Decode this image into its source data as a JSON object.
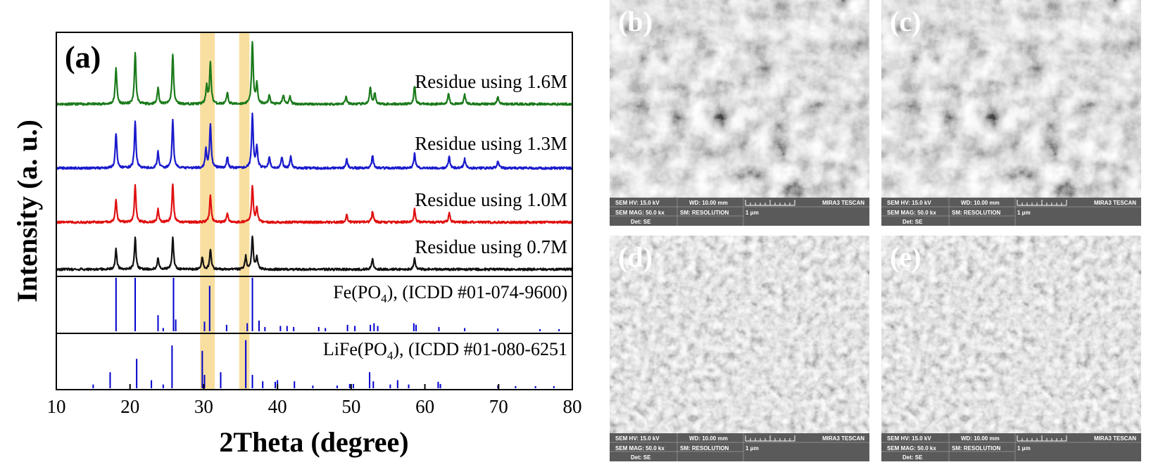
{
  "chart_data": {
    "type": "line",
    "panel_label": "(a)",
    "xlabel": "2Theta (degree)",
    "ylabel": "Intensity (a. u.)",
    "xlim": [
      10,
      80
    ],
    "xticks": [
      10,
      20,
      30,
      40,
      50,
      60,
      70,
      80
    ],
    "highlight_bands": [
      [
        29.5,
        31.5
      ],
      [
        34.8,
        36.2
      ]
    ],
    "colors": {
      "highlight": "#f8dfa0",
      "reference_sticks": "#0000cc"
    },
    "series": [
      {
        "name": "Residue using 1.6M",
        "color": "#1a7a1a",
        "peaks": [
          [
            18.1,
            1.0
          ],
          [
            20.7,
            1.4
          ],
          [
            23.8,
            0.45
          ],
          [
            25.8,
            1.35
          ],
          [
            30.4,
            0.5
          ],
          [
            30.9,
            1.1
          ],
          [
            33.2,
            0.3
          ],
          [
            36.6,
            1.7
          ],
          [
            37.2,
            0.55
          ],
          [
            38.9,
            0.25
          ],
          [
            40.8,
            0.25
          ],
          [
            41.7,
            0.2
          ],
          [
            49.3,
            0.2
          ],
          [
            52.6,
            0.45
          ],
          [
            53.2,
            0.3
          ],
          [
            58.6,
            0.5
          ],
          [
            63.2,
            0.3
          ],
          [
            65.4,
            0.25
          ],
          [
            69.9,
            0.2
          ]
        ]
      },
      {
        "name": "Residue using 1.3M",
        "color": "#1a1acc",
        "peaks": [
          [
            18.1,
            0.95
          ],
          [
            20.7,
            1.25
          ],
          [
            23.8,
            0.45
          ],
          [
            25.8,
            1.3
          ],
          [
            30.3,
            0.5
          ],
          [
            30.9,
            1.2
          ],
          [
            33.2,
            0.3
          ],
          [
            36.6,
            1.45
          ],
          [
            37.2,
            0.6
          ],
          [
            38.9,
            0.3
          ],
          [
            40.6,
            0.3
          ],
          [
            41.8,
            0.3
          ],
          [
            49.4,
            0.25
          ],
          [
            52.9,
            0.35
          ],
          [
            58.6,
            0.4
          ],
          [
            63.3,
            0.3
          ],
          [
            65.4,
            0.25
          ],
          [
            69.9,
            0.2
          ]
        ]
      },
      {
        "name": "Residue using 1.0M",
        "color": "#e01010",
        "peaks": [
          [
            18.1,
            0.6
          ],
          [
            20.7,
            1.0
          ],
          [
            23.8,
            0.35
          ],
          [
            25.8,
            1.05
          ],
          [
            30.9,
            0.75
          ],
          [
            33.2,
            0.25
          ],
          [
            36.6,
            1.0
          ],
          [
            37.2,
            0.4
          ],
          [
            49.4,
            0.2
          ],
          [
            52.9,
            0.3
          ],
          [
            58.6,
            0.35
          ],
          [
            63.3,
            0.25
          ]
        ]
      },
      {
        "name": "Residue using 0.7M",
        "color": "#111111",
        "peaks": [
          [
            18.1,
            0.55
          ],
          [
            20.7,
            0.85
          ],
          [
            23.8,
            0.3
          ],
          [
            25.8,
            0.85
          ],
          [
            29.8,
            0.35
          ],
          [
            30.9,
            0.55
          ],
          [
            35.7,
            0.35
          ],
          [
            36.6,
            0.9
          ],
          [
            37.2,
            0.35
          ],
          [
            52.9,
            0.3
          ],
          [
            58.6,
            0.3
          ]
        ]
      }
    ],
    "references": [
      {
        "name_main": "Fe(PO",
        "name_sub": "4",
        "name_rest": "), (ICDD #01-074-9600)",
        "sticks": [
          [
            18.1,
            1.0
          ],
          [
            20.7,
            1.0
          ],
          [
            23.8,
            0.3
          ],
          [
            24.5,
            0.06
          ],
          [
            25.9,
            1.0
          ],
          [
            26.2,
            0.22
          ],
          [
            30.1,
            0.18
          ],
          [
            30.8,
            0.85
          ],
          [
            33.1,
            0.12
          ],
          [
            35.9,
            0.15
          ],
          [
            36.6,
            1.0
          ],
          [
            37.5,
            0.2
          ],
          [
            38.3,
            0.08
          ],
          [
            40.4,
            0.1
          ],
          [
            41.3,
            0.1
          ],
          [
            42.2,
            0.08
          ],
          [
            45.6,
            0.08
          ],
          [
            46.5,
            0.06
          ],
          [
            49.5,
            0.12
          ],
          [
            50.5,
            0.1
          ],
          [
            52.6,
            0.12
          ],
          [
            53.1,
            0.15
          ],
          [
            53.6,
            0.1
          ],
          [
            58.5,
            0.15
          ],
          [
            58.8,
            0.12
          ],
          [
            61.9,
            0.08
          ],
          [
            65.4,
            0.06
          ],
          [
            69.9,
            0.05
          ],
          [
            75.6,
            0.04
          ],
          [
            78.2,
            0.04
          ]
        ]
      },
      {
        "name_main": "LiFe(PO",
        "name_sub": "4",
        "name_rest": "), (ICDD #01-080-6251",
        "sticks": [
          [
            15.0,
            0.07
          ],
          [
            17.3,
            0.3
          ],
          [
            20.9,
            0.55
          ],
          [
            22.9,
            0.15
          ],
          [
            24.5,
            0.07
          ],
          [
            25.7,
            0.8
          ],
          [
            29.8,
            0.7
          ],
          [
            30.1,
            0.25
          ],
          [
            32.3,
            0.3
          ],
          [
            35.7,
            0.9
          ],
          [
            36.6,
            0.25
          ],
          [
            38.0,
            0.13
          ],
          [
            39.7,
            0.12
          ],
          [
            40.0,
            0.15
          ],
          [
            42.3,
            0.13
          ],
          [
            44.8,
            0.05
          ],
          [
            48.1,
            0.05
          ],
          [
            49.8,
            0.08
          ],
          [
            50.3,
            0.08
          ],
          [
            52.5,
            0.3
          ],
          [
            53.0,
            0.13
          ],
          [
            55.3,
            0.07
          ],
          [
            56.3,
            0.15
          ],
          [
            57.8,
            0.07
          ],
          [
            61.8,
            0.12
          ],
          [
            62.1,
            0.08
          ],
          [
            69.9,
            0.05
          ],
          [
            72.3,
            0.04
          ],
          [
            75.0,
            0.04
          ],
          [
            77.5,
            0.04
          ]
        ]
      }
    ]
  },
  "sem_panels": [
    {
      "label": "(b)",
      "hv": "SEM HV: 15.0 kV",
      "wd": "WD: 10.00 mm",
      "brand": "MIRA3 TESCAN",
      "mag": "SEM MAG: 50.0 kx",
      "mode": "SM: RESOLUTION",
      "scale": "1 μm",
      "det": "Det: SE"
    },
    {
      "label": "(c)",
      "hv": "SEM HV: 15.0 kV",
      "wd": "WD: 10.00 mm",
      "brand": "MIRA3 TESCAN",
      "mag": "SEM MAG: 50.0 kx",
      "mode": "SM: RESOLUTION",
      "scale": "1 μm",
      "det": "Det: SE"
    },
    {
      "label": "(d)",
      "hv": "SEM HV: 15.0 kV",
      "wd": "WD: 10.00 mm",
      "brand": "MIRA3 TESCAN",
      "mag": "SEM MAG: 50.0 kx",
      "mode": "SM: RESOLUTION",
      "scale": "1 μm",
      "det": "Det: SE"
    },
    {
      "label": "(e)",
      "hv": "SEM HV: 15.0 kV",
      "wd": "WD: 10.00 mm",
      "brand": "MIRA3 TESCAN",
      "mag": "SEM MAG: 50.0 kx",
      "mode": "SM: RESOLUTION",
      "scale": "1 μm",
      "det": "Det: SE"
    }
  ]
}
